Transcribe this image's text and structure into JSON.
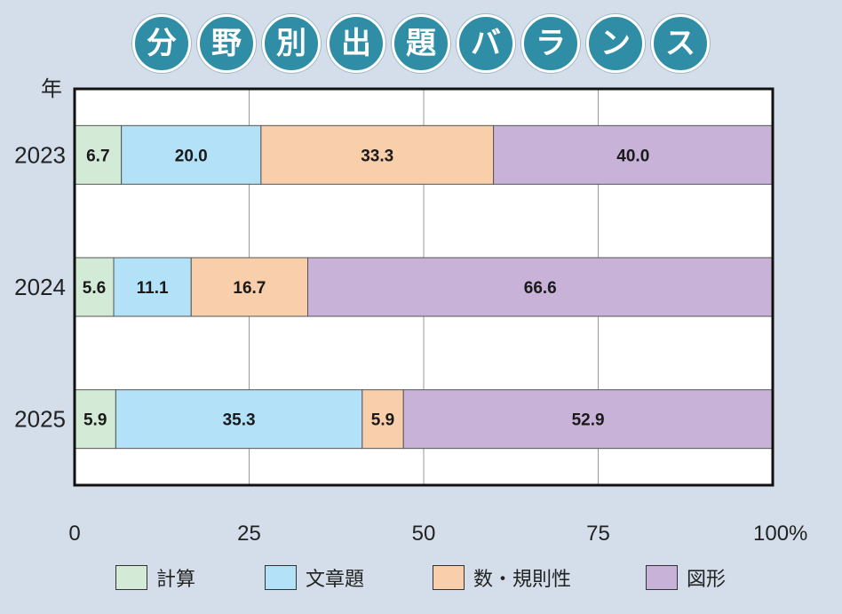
{
  "title_chars": [
    "分",
    "野",
    "別",
    "出",
    "題",
    "バ",
    "ラ",
    "ン",
    "ス"
  ],
  "colors": {
    "計算": "#d3ebd6",
    "文章題": "#b2e1f8",
    "数・規則性": "#f9ceab",
    "図形": "#c9b2d8",
    "background": "#d3deea",
    "title_circle": "#2f8ea6"
  },
  "chart_data": {
    "type": "bar",
    "orientation": "horizontal",
    "stacked": true,
    "title": "分野別出題バランス",
    "ylabel": "年",
    "categories": [
      "2023",
      "2024",
      "2025"
    ],
    "series": [
      {
        "name": "計算",
        "values": [
          6.7,
          5.6,
          5.9
        ],
        "labels": [
          "6.7",
          "5.6",
          "5.9"
        ]
      },
      {
        "name": "文章題",
        "values": [
          20.0,
          11.1,
          35.3
        ],
        "labels": [
          "20.0",
          "11.1",
          "35.3"
        ]
      },
      {
        "name": "数・規則性",
        "values": [
          33.3,
          16.7,
          5.9
        ],
        "labels": [
          "33.3",
          "16.7",
          "5.9"
        ]
      },
      {
        "name": "図形",
        "values": [
          40.0,
          66.6,
          52.9
        ],
        "labels": [
          "40.0",
          "66.6",
          "52.9"
        ]
      }
    ],
    "xlim": [
      0,
      100
    ],
    "xticks": [
      0,
      25,
      50,
      75,
      100
    ],
    "xtick_labels": [
      "0",
      "25",
      "50",
      "75",
      "100%"
    ],
    "grid": true,
    "legend_position": "bottom"
  }
}
